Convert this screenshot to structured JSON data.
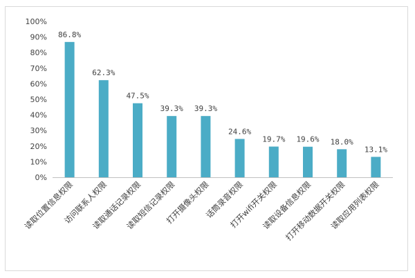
{
  "chart_data": {
    "type": "bar",
    "categories": [
      "读取位置信息权限",
      "访问联系人权限",
      "读取通话记录权限",
      "读取短信记录权限",
      "打开摄像头权限",
      "话筒录音权限",
      "打开wifi开关权限",
      "读取设备信息权限",
      "打开移动数据开关权限",
      "读取应用列表权限"
    ],
    "values": [
      86.8,
      62.3,
      47.5,
      39.3,
      39.3,
      24.6,
      19.7,
      19.6,
      18.0,
      13.1
    ],
    "data_labels": [
      "86.8%",
      "62.3%",
      "47.5%",
      "39.3%",
      "39.3%",
      "24.6%",
      "19.7%",
      "19.6%",
      "18.0%",
      "13.1%"
    ],
    "y_ticks": [
      "0%",
      "10%",
      "20%",
      "30%",
      "40%",
      "50%",
      "60%",
      "70%",
      "80%",
      "90%",
      "100%"
    ],
    "ylim": [
      0,
      100
    ],
    "grid": false,
    "bar_color": "#4bacc6",
    "title": "",
    "xlabel": "",
    "ylabel": ""
  }
}
